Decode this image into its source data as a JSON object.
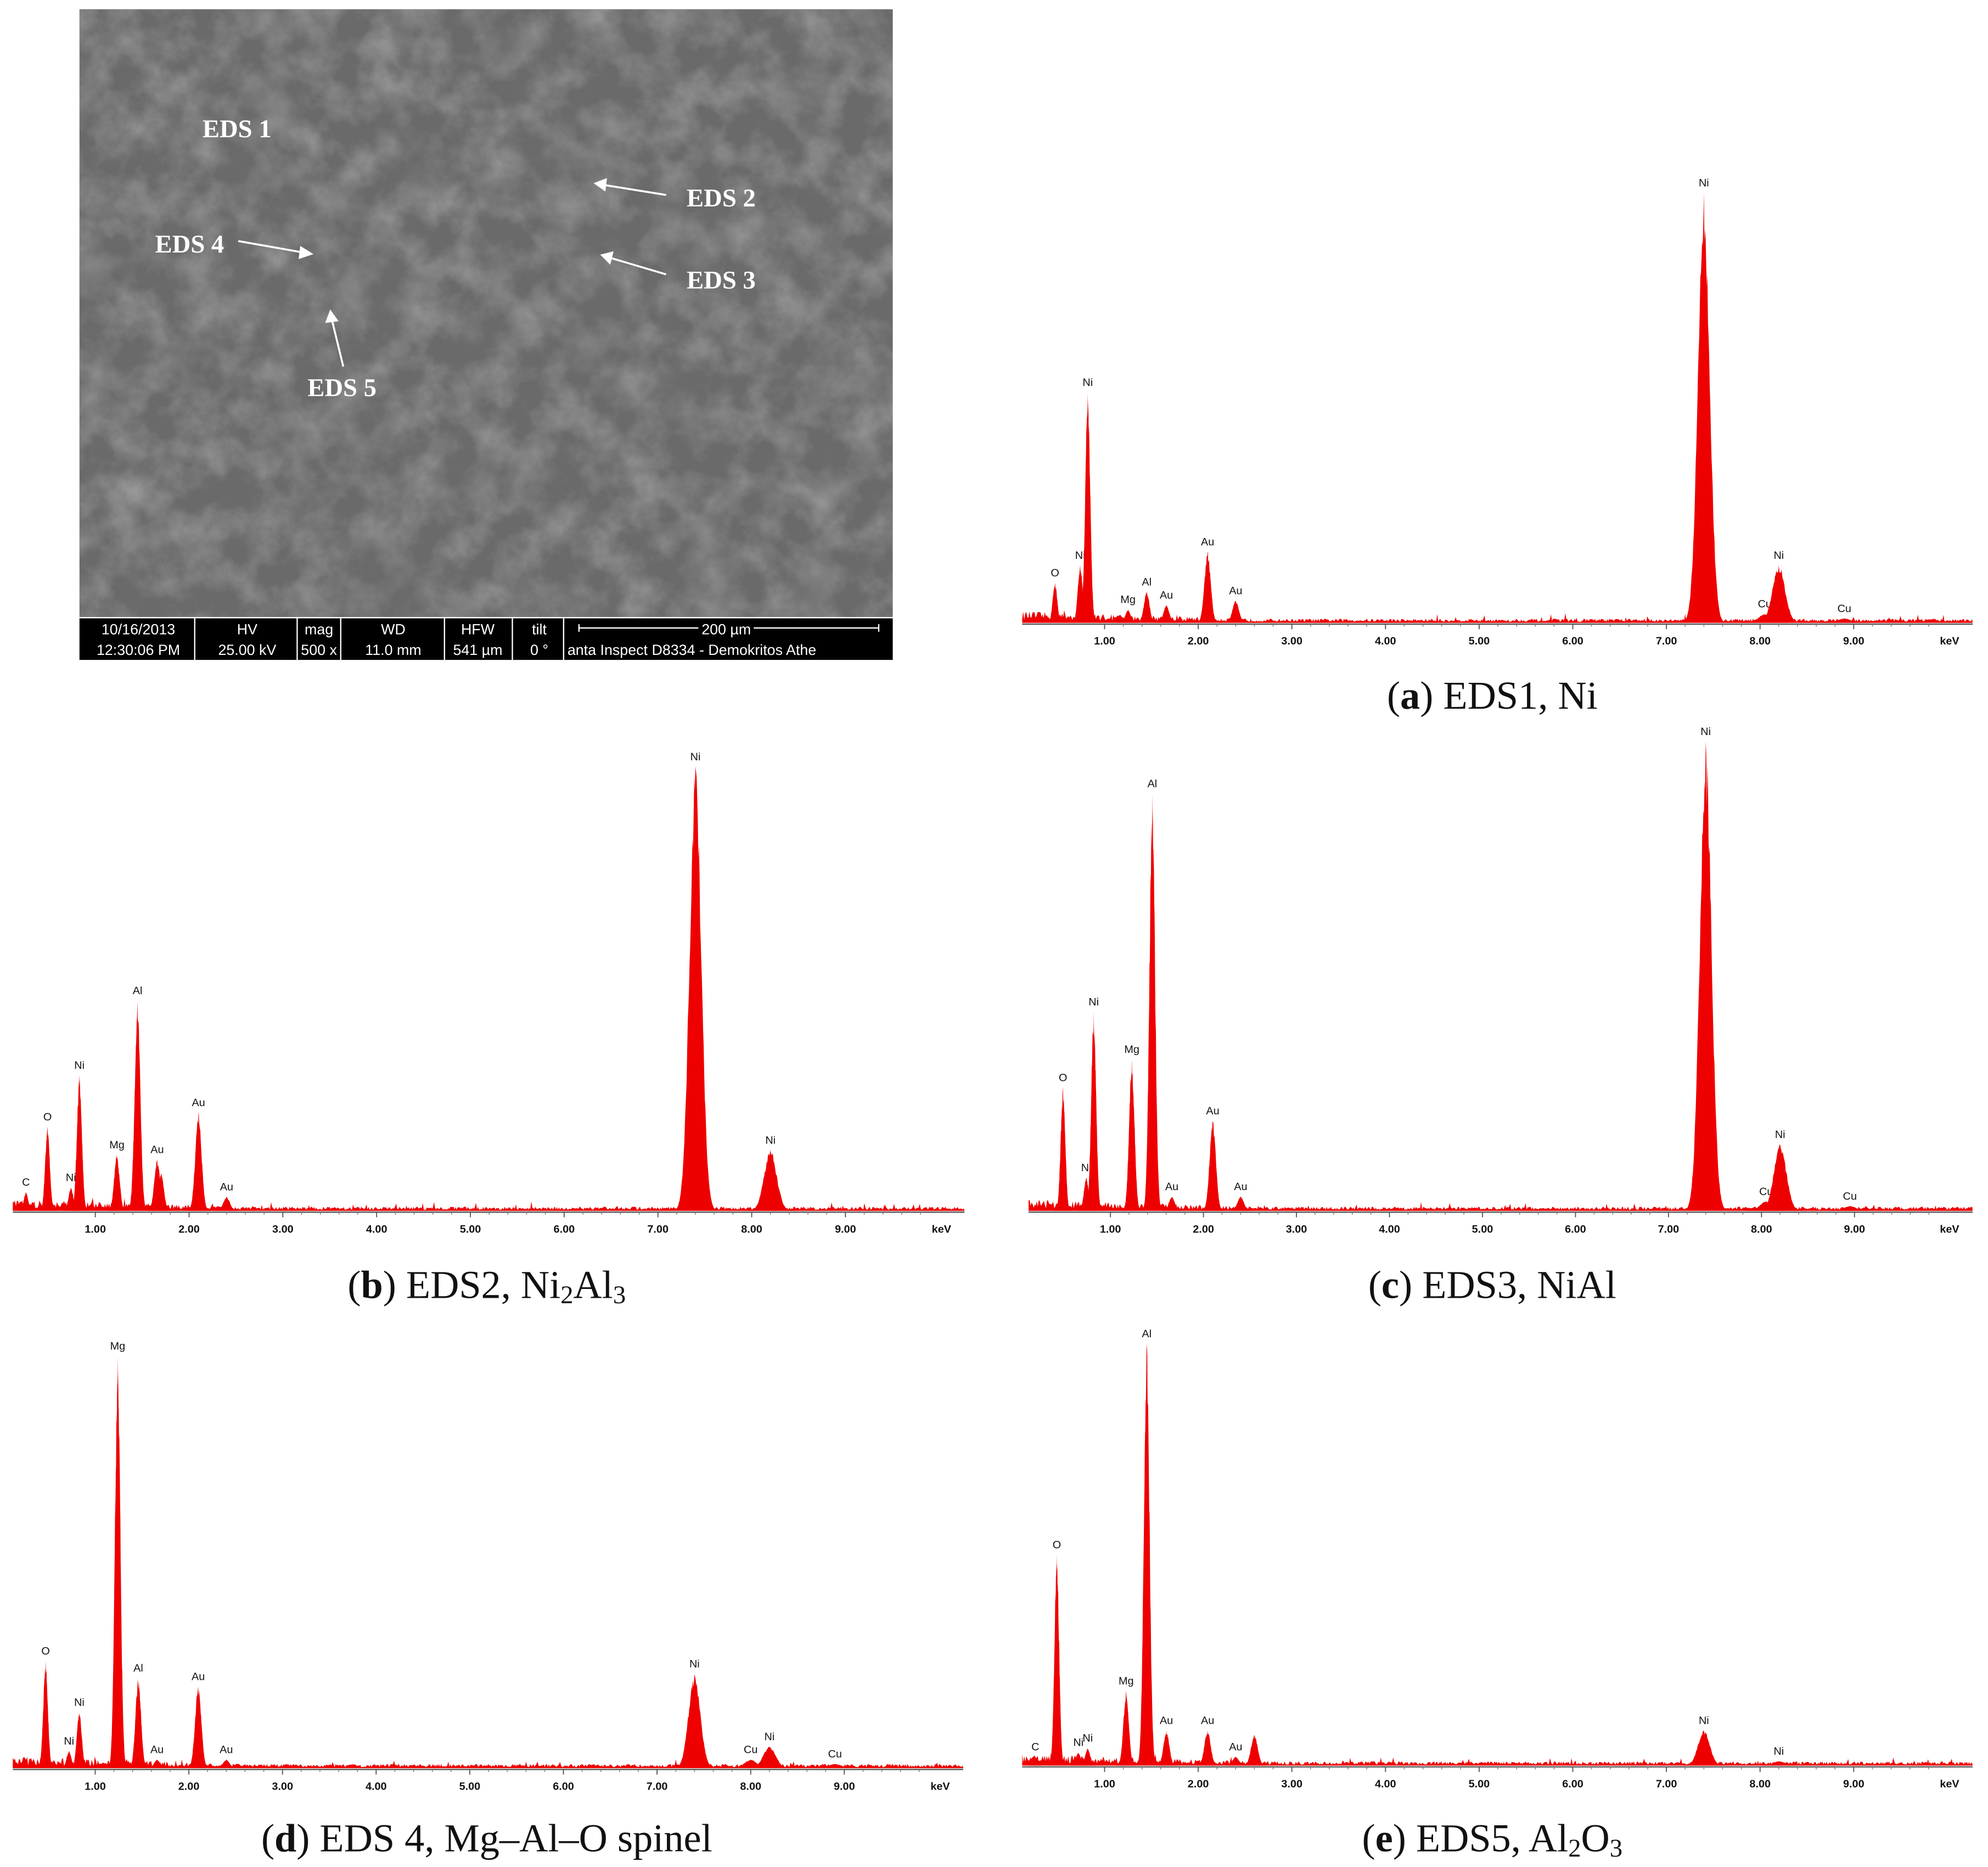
{
  "sem": {
    "labels": [
      "EDS 1",
      "EDS 2",
      "EDS 3",
      "EDS 4",
      "EDS 5"
    ],
    "databar": [
      [
        "10/16/2013",
        "12:30:06 PM"
      ],
      [
        "HV",
        "25.00 kV"
      ],
      [
        "mag",
        "500 x"
      ],
      [
        "WD",
        "11.0 mm"
      ],
      [
        "HFW",
        "541 µm"
      ],
      [
        "tilt",
        "0 °"
      ],
      [
        "200 µm",
        "anta Inspect D8334 - Demokritos Athe"
      ]
    ]
  },
  "chart_data": [
    {
      "type": "spectrum",
      "caption": [
        {
          "text": "("
        },
        {
          "text": "a",
          "style": "bold"
        },
        {
          "text": ") EDS1, Ni"
        }
      ],
      "xlabel": "keV",
      "xlim": [
        0.12,
        10.27
      ],
      "ylim": [
        0,
        100
      ],
      "xticks": [
        {
          "value": 1,
          "label": "1.00"
        },
        {
          "value": 2,
          "label": "2.00"
        },
        {
          "value": 3,
          "label": "3.00"
        },
        {
          "value": 4,
          "label": "4.00"
        },
        {
          "value": 5,
          "label": "5.00"
        },
        {
          "value": 6,
          "label": "6.00"
        },
        {
          "value": 7,
          "label": "7.00"
        },
        {
          "value": 8,
          "label": "8.00"
        },
        {
          "value": 9,
          "label": "9.00"
        }
      ],
      "color": "#ee0000",
      "peaks": [
        {
          "label": "O",
          "x": 0.47,
          "value": 9
        },
        {
          "label": "Ni",
          "x": 0.74,
          "value": 13
        },
        {
          "label": "Ni",
          "x": 0.82,
          "value": 52
        },
        {
          "label": "Mg",
          "x": 1.25,
          "value": 3
        },
        {
          "label": "Al",
          "x": 1.45,
          "value": 7
        },
        {
          "label": "Au",
          "x": 1.66,
          "value": 4
        },
        {
          "label": "Au",
          "x": 2.1,
          "value": 16
        },
        {
          "label": "Au",
          "x": 2.4,
          "value": 5
        },
        {
          "label": "Ni",
          "x": 7.4,
          "value": 97
        },
        {
          "label": "Cu",
          "x": 8.05,
          "value": 2
        },
        {
          "label": "Ni",
          "x": 8.2,
          "value": 13
        },
        {
          "label": "Cu",
          "x": 8.9,
          "value": 1
        }
      ]
    },
    {
      "type": "spectrum",
      "caption": [
        {
          "text": "("
        },
        {
          "text": "b",
          "style": "bold"
        },
        {
          "text": ") EDS2, Ni"
        },
        {
          "text": "2",
          "style": "sub"
        },
        {
          "text": "Al"
        },
        {
          "text": "3",
          "style": "sub"
        }
      ],
      "xlabel": "keV",
      "xlim": [
        0.12,
        10.27
      ],
      "ylim": [
        0,
        100
      ],
      "xticks": [
        {
          "value": 1,
          "label": "1.00"
        },
        {
          "value": 2,
          "label": "2.00"
        },
        {
          "value": 3,
          "label": "3.00"
        },
        {
          "value": 4,
          "label": "4.00"
        },
        {
          "value": 5,
          "label": "5.00"
        },
        {
          "value": 6,
          "label": "6.00"
        },
        {
          "value": 7,
          "label": "7.00"
        },
        {
          "value": 8,
          "label": "8.00"
        },
        {
          "value": 9,
          "label": "9.00"
        }
      ],
      "color": "#ee0000",
      "peaks": [
        {
          "label": "C",
          "x": 0.26,
          "value": 4
        },
        {
          "label": "O",
          "x": 0.49,
          "value": 18
        },
        {
          "label": "Ni",
          "x": 0.74,
          "value": 5
        },
        {
          "label": "Ni",
          "x": 0.83,
          "value": 29
        },
        {
          "label": "Mg",
          "x": 1.23,
          "value": 12
        },
        {
          "label": "Al",
          "x": 1.45,
          "value": 45
        },
        {
          "label": "Au",
          "x": 1.66,
          "value": 11
        },
        {
          "label": "Au",
          "x": 2.1,
          "value": 21
        },
        {
          "label": "Au",
          "x": 2.4,
          "value": 3
        },
        {
          "label": null,
          "x": 1.7,
          "value": 8
        },
        {
          "label": "Ni",
          "x": 7.4,
          "value": 95
        },
        {
          "label": "Ni",
          "x": 8.2,
          "value": 13
        }
      ]
    },
    {
      "type": "spectrum",
      "caption": [
        {
          "text": "("
        },
        {
          "text": "c",
          "style": "bold"
        },
        {
          "text": ") EDS3, NiAl"
        }
      ],
      "xlabel": "keV",
      "xlim": [
        0.12,
        10.27
      ],
      "ylim": [
        0,
        100
      ],
      "xticks": [
        {
          "value": 1,
          "label": "1.00"
        },
        {
          "value": 2,
          "label": "2.00"
        },
        {
          "value": 3,
          "label": "3.00"
        },
        {
          "value": 4,
          "label": "4.00"
        },
        {
          "value": 5,
          "label": "5.00"
        },
        {
          "value": 6,
          "label": "6.00"
        },
        {
          "value": 7,
          "label": "7.00"
        },
        {
          "value": 8,
          "label": "8.00"
        },
        {
          "value": 9,
          "label": "9.00"
        }
      ],
      "color": "#ee0000",
      "peaks": [
        {
          "label": "O",
          "x": 0.49,
          "value": 26
        },
        {
          "label": "Ni",
          "x": 0.74,
          "value": 7
        },
        {
          "label": "Ni",
          "x": 0.82,
          "value": 42
        },
        {
          "label": "Mg",
          "x": 1.23,
          "value": 32
        },
        {
          "label": "Al",
          "x": 1.45,
          "value": 88
        },
        {
          "label": "Au",
          "x": 1.66,
          "value": 3
        },
        {
          "label": "Au",
          "x": 2.1,
          "value": 19
        },
        {
          "label": "Au",
          "x": 2.4,
          "value": 3
        },
        {
          "label": "Ni",
          "x": 7.4,
          "value": 99
        },
        {
          "label": "Cu",
          "x": 8.05,
          "value": 2
        },
        {
          "label": "Ni",
          "x": 8.2,
          "value": 14
        },
        {
          "label": "Cu",
          "x": 8.95,
          "value": 1
        }
      ]
    },
    {
      "type": "spectrum",
      "caption": [
        {
          "text": "("
        },
        {
          "text": "d",
          "style": "bold"
        },
        {
          "text": ") EDS 4, Mg–Al–O spinel"
        }
      ],
      "xlabel": "keV",
      "xlim": [
        0.12,
        10.27
      ],
      "ylim": [
        0,
        100
      ],
      "xticks": [
        {
          "value": 1,
          "label": "1.00"
        },
        {
          "value": 2,
          "label": "2.00"
        },
        {
          "value": 3,
          "label": "3.00"
        },
        {
          "value": 4,
          "label": "4.00"
        },
        {
          "value": 5,
          "label": "5.00"
        },
        {
          "value": 6,
          "label": "6.00"
        },
        {
          "value": 7,
          "label": "7.00"
        },
        {
          "value": 8,
          "label": "8.00"
        },
        {
          "value": 9,
          "label": "9.00"
        }
      ],
      "color": "#ee0000",
      "peaks": [
        {
          "label": "O",
          "x": 0.47,
          "value": 25
        },
        {
          "label": "Ni",
          "x": 0.72,
          "value": 4
        },
        {
          "label": "Ni",
          "x": 0.83,
          "value": 13
        },
        {
          "label": "Mg",
          "x": 1.24,
          "value": 96
        },
        {
          "label": "Al",
          "x": 1.46,
          "value": 21
        },
        {
          "label": "Au",
          "x": 1.66,
          "value": 2
        },
        {
          "label": "Au",
          "x": 2.1,
          "value": 19
        },
        {
          "label": "Au",
          "x": 2.4,
          "value": 2
        },
        {
          "label": "Ni",
          "x": 7.4,
          "value": 22
        },
        {
          "label": "Cu",
          "x": 8.0,
          "value": 2
        },
        {
          "label": "Ni",
          "x": 8.2,
          "value": 5
        },
        {
          "label": "Cu",
          "x": 8.9,
          "value": 1
        }
      ]
    },
    {
      "type": "spectrum",
      "caption": [
        {
          "text": "("
        },
        {
          "text": "e",
          "style": "bold"
        },
        {
          "text": ") EDS5, Al"
        },
        {
          "text": "2",
          "style": "sub"
        },
        {
          "text": "O"
        },
        {
          "text": "3",
          "style": "sub"
        }
      ],
      "xlabel": "keV",
      "xlim": [
        0.12,
        10.27
      ],
      "ylim": [
        0,
        100
      ],
      "xticks": [
        {
          "value": 1,
          "label": "1.00"
        },
        {
          "value": 2,
          "label": "2.00"
        },
        {
          "value": 3,
          "label": "3.00"
        },
        {
          "value": 4,
          "label": "4.00"
        },
        {
          "value": 5,
          "label": "5.00"
        },
        {
          "value": 6,
          "label": "6.00"
        },
        {
          "value": 7,
          "label": "7.00"
        },
        {
          "value": 8,
          "label": "8.00"
        },
        {
          "value": 9,
          "label": "9.00"
        }
      ],
      "color": "#ee0000",
      "peaks": [
        {
          "label": "C",
          "x": 0.26,
          "value": 2
        },
        {
          "label": "O",
          "x": 0.49,
          "value": 48
        },
        {
          "label": "Ni",
          "x": 0.72,
          "value": 3
        },
        {
          "label": "Ni",
          "x": 0.82,
          "value": 4
        },
        {
          "label": "Mg",
          "x": 1.23,
          "value": 17
        },
        {
          "label": "Al",
          "x": 1.45,
          "value": 96
        },
        {
          "label": "Au",
          "x": 1.66,
          "value": 8
        },
        {
          "label": "Au",
          "x": 2.1,
          "value": 8
        },
        {
          "label": "Au",
          "x": 2.4,
          "value": 2
        },
        {
          "label": null,
          "x": 2.6,
          "value": 7
        },
        {
          "label": "Ni",
          "x": 7.4,
          "value": 8
        },
        {
          "label": "Ni",
          "x": 8.2,
          "value": 1
        }
      ]
    }
  ]
}
